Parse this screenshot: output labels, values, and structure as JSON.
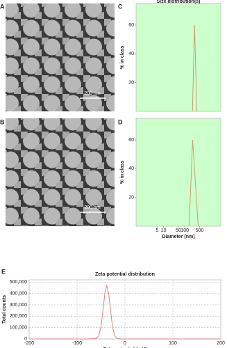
{
  "images": [
    {
      "label": "A",
      "scale_bar": "200 nm"
    },
    {
      "label": "B",
      "scale_bar": "200 nm"
    }
  ],
  "chart_data": [
    {
      "type": "line",
      "panel_label": "C",
      "title": "Size distribution(s)",
      "y_label": "% in class",
      "xscale": "log",
      "xlim": [
        0.5,
        5000
      ],
      "ylim": [
        0,
        75
      ],
      "yticks": [
        20,
        40,
        60
      ],
      "background": "#ccffcc",
      "x": [
        230,
        290,
        370
      ],
      "series": [
        {
          "color": "#c8a070",
          "values": [
            0,
            60,
            0
          ]
        }
      ]
    },
    {
      "type": "line",
      "panel_label": "D",
      "x_label": "Diameter (nm)",
      "y_label": "% in class",
      "xscale": "log",
      "xlim": [
        0.5,
        5000
      ],
      "ylim": [
        0,
        75
      ],
      "xticks": [
        5,
        10,
        50,
        100,
        500
      ],
      "yticks": [
        20,
        40,
        60
      ],
      "background": "#ccffcc",
      "x": [
        160,
        235,
        430
      ],
      "series": [
        {
          "color": "#c8a070",
          "values": [
            0,
            60,
            0
          ]
        }
      ]
    },
    {
      "type": "line",
      "panel_label": "E",
      "title": "Zeta potential distribution",
      "x_label": "Zeta potential (mV)",
      "y_label": "Total counts",
      "xlim": [
        -200,
        200
      ],
      "ylim": [
        0,
        520000
      ],
      "xticks": [
        -200,
        -100,
        0,
        100,
        200
      ],
      "grid": true,
      "yticks": [
        0,
        {
          "value": 100000,
          "label": "100,000"
        },
        {
          "value": 200000,
          "label": "200,000"
        },
        {
          "value": 300000,
          "label": "300,000"
        },
        {
          "value": 400000,
          "label": "400,000"
        },
        {
          "value": 500000,
          "label": "500,000"
        }
      ],
      "x": [
        -200,
        -80,
        -60,
        -55,
        -50,
        -45,
        -42,
        -38,
        -34,
        -31,
        -26,
        -21,
        -16,
        -6,
        200
      ],
      "series": [
        {
          "color": "#e08080",
          "values": [
            0,
            0,
            3000,
            25000,
            108000,
            285000,
            399000,
            470000,
            399000,
            285000,
            108000,
            25000,
            3000,
            0,
            0
          ]
        }
      ]
    }
  ]
}
